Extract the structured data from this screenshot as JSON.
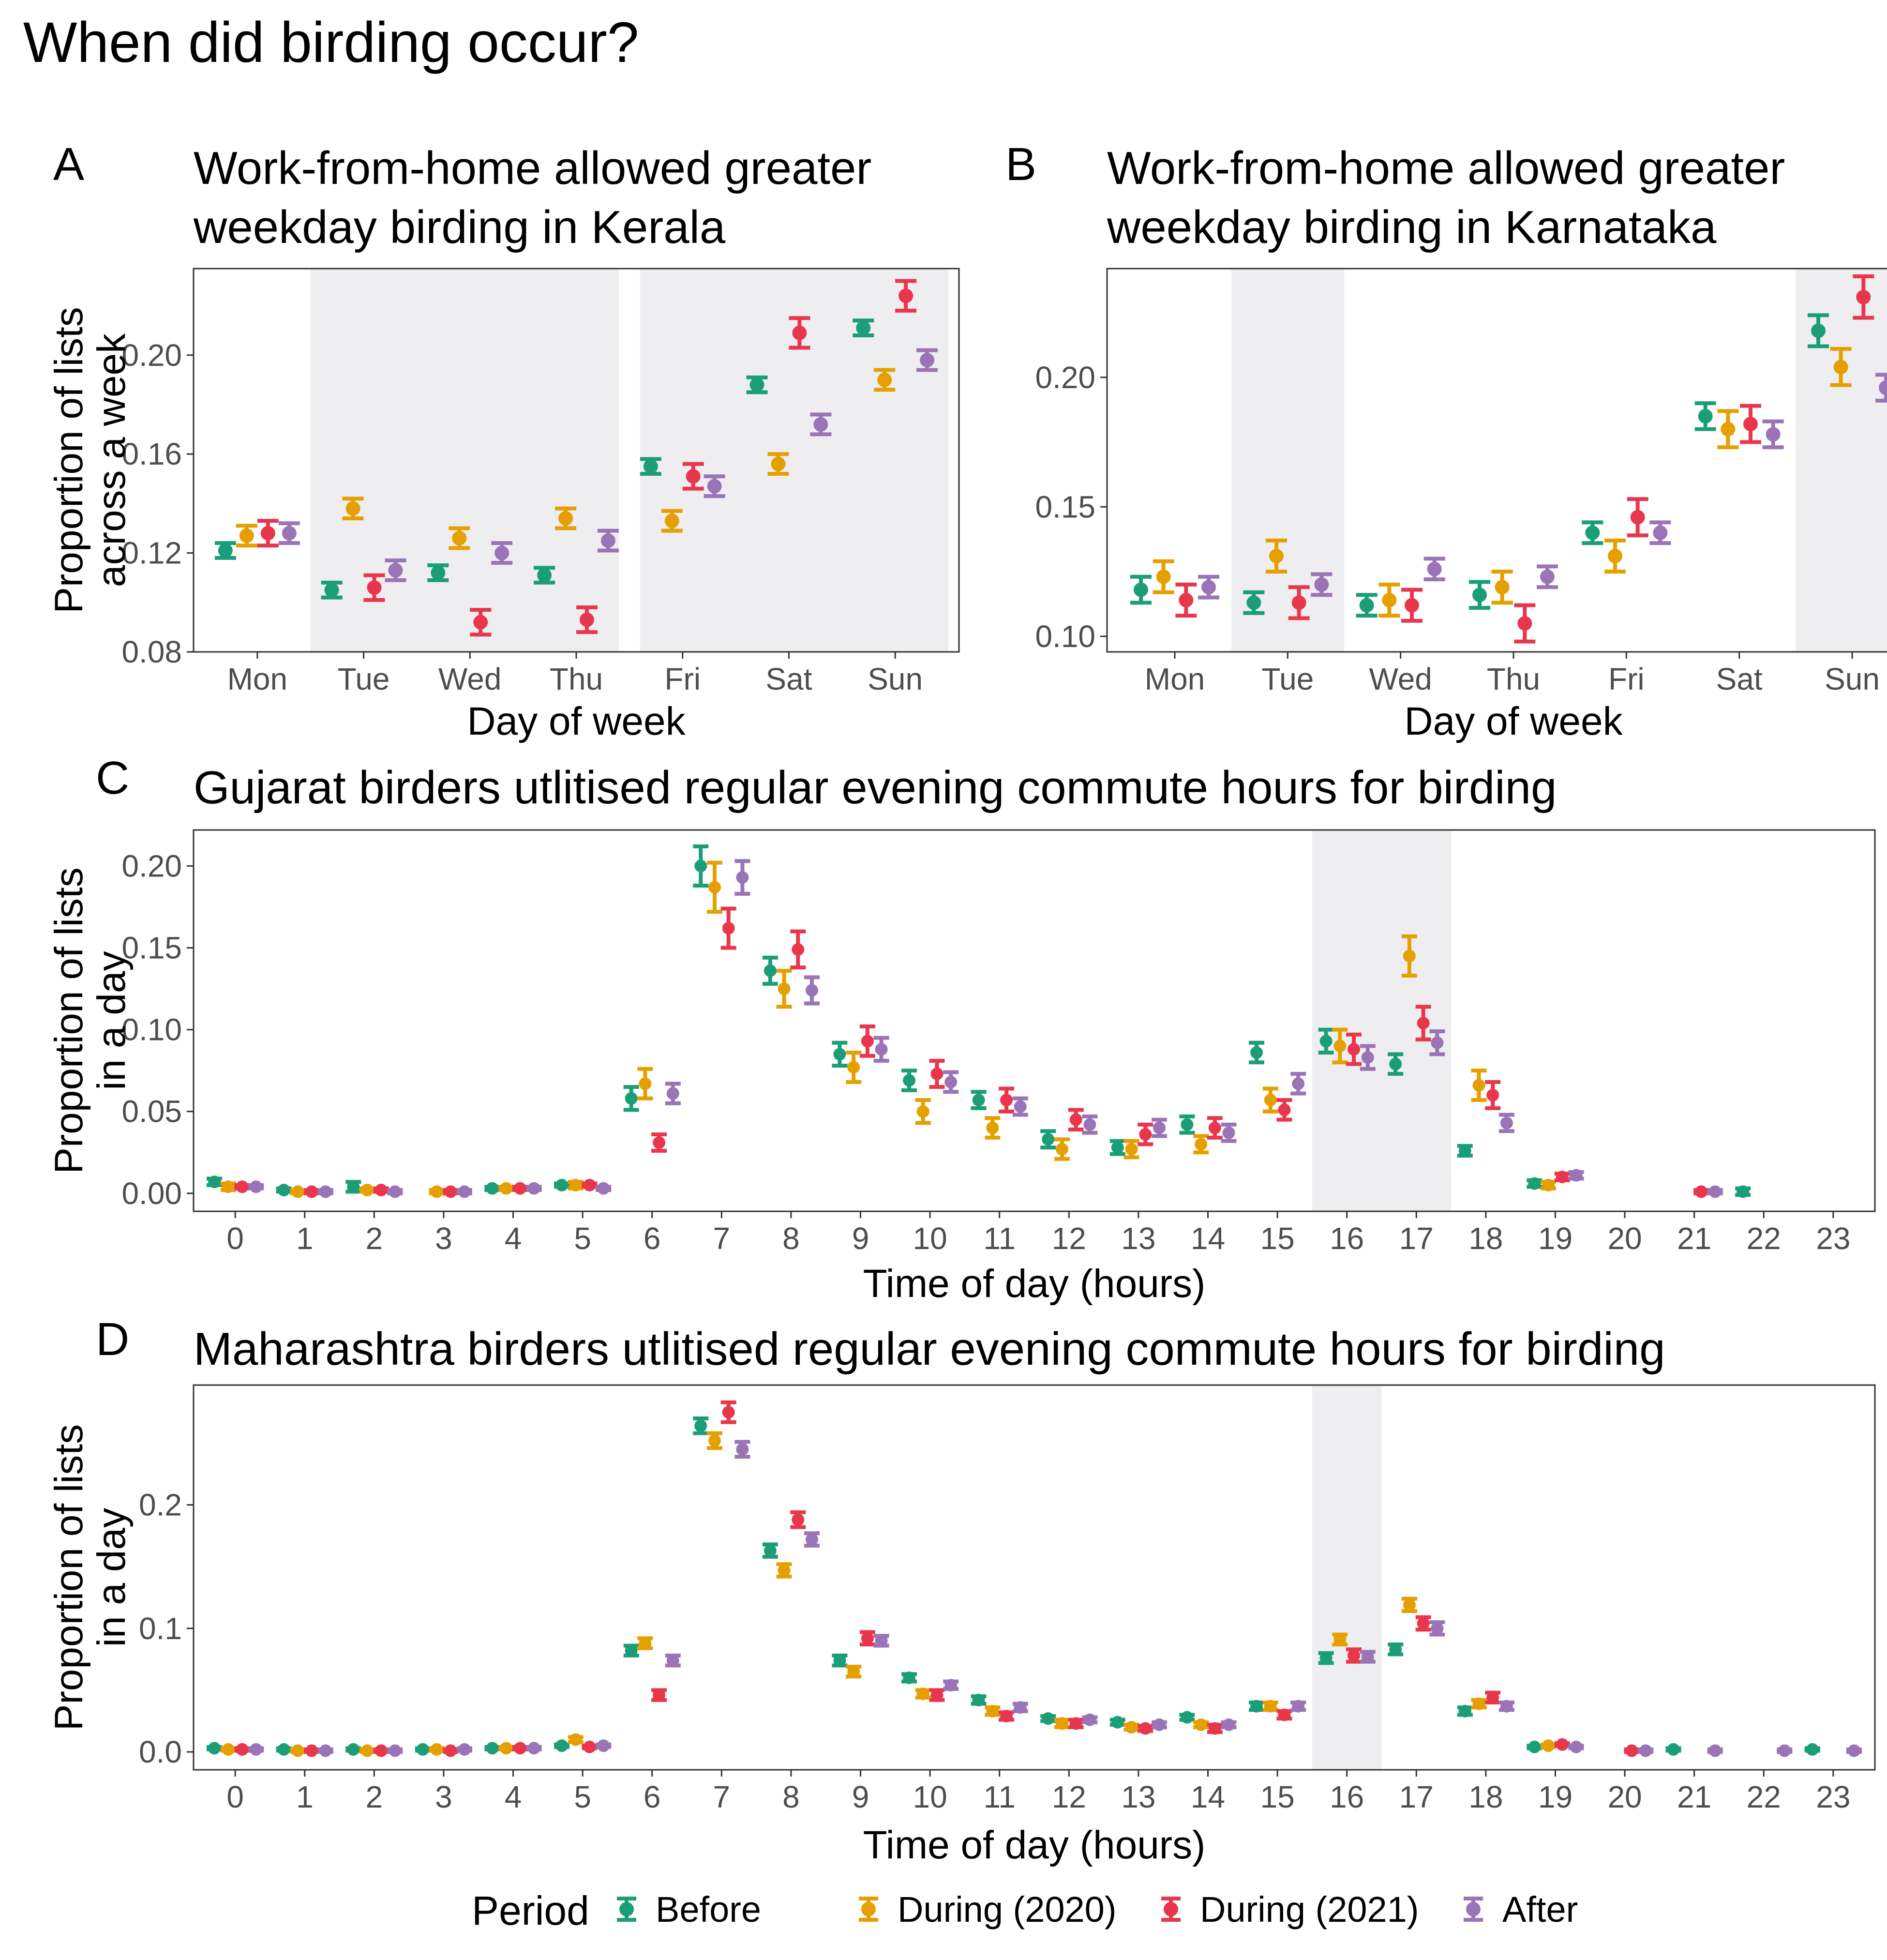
{
  "main_title": "When did birding occur?",
  "legend": {
    "title": "Period",
    "items": [
      {
        "name": "Before",
        "color": "#1b9e77"
      },
      {
        "name": "During (2020)",
        "color": "#e69f00"
      },
      {
        "name": "During (2021)",
        "color": "#e8374d"
      },
      {
        "name": "After",
        "color": "#9a74b6"
      }
    ]
  },
  "chart_data": [
    {
      "type": "scatter",
      "panel": "A",
      "title": [
        "Work-from-home allowed greater",
        "weekday birding in Kerala"
      ],
      "xlabel": "Day of week",
      "ylabel": [
        "Proportion of lists",
        "across a week"
      ],
      "categories": [
        "Mon",
        "Tue",
        "Wed",
        "Thu",
        "Fri",
        "Sat",
        "Sun"
      ],
      "ylim": [
        0.08,
        0.235
      ],
      "yticks": [
        0.08,
        0.12,
        0.16,
        0.2
      ],
      "tick_labels": [
        "0.08",
        "0.12",
        "0.16",
        "0.20"
      ],
      "shaded": [
        [
          1.5,
          4.4
        ],
        [
          4.6,
          7.5
        ]
      ],
      "series": [
        {
          "name": "Before",
          "values": [
            0.121,
            0.105,
            0.112,
            0.111,
            0.155,
            0.188,
            0.211
          ],
          "err": [
            0.003,
            0.003,
            0.003,
            0.003,
            0.003,
            0.003,
            0.003
          ]
        },
        {
          "name": "During (2020)",
          "values": [
            0.127,
            0.138,
            0.126,
            0.134,
            0.133,
            0.156,
            0.19
          ],
          "err": [
            0.004,
            0.004,
            0.004,
            0.004,
            0.004,
            0.004,
            0.004
          ]
        },
        {
          "name": "During (2021)",
          "values": [
            0.128,
            0.106,
            0.092,
            0.093,
            0.151,
            0.209,
            0.224
          ],
          "err": [
            0.005,
            0.005,
            0.005,
            0.005,
            0.005,
            0.006,
            0.006
          ]
        },
        {
          "name": "After",
          "values": [
            0.128,
            0.113,
            0.12,
            0.125,
            0.147,
            0.172,
            0.198
          ],
          "err": [
            0.004,
            0.004,
            0.004,
            0.004,
            0.004,
            0.004,
            0.004
          ]
        }
      ]
    },
    {
      "type": "scatter",
      "panel": "B",
      "title": [
        "Work-from-home allowed greater",
        "weekday birding in Karnataka"
      ],
      "xlabel": "Day of week",
      "ylabel": [],
      "categories": [
        "Mon",
        "Tue",
        "Wed",
        "Thu",
        "Fri",
        "Sat",
        "Sun"
      ],
      "ylim": [
        0.094,
        0.242
      ],
      "yticks": [
        0.1,
        0.15,
        0.2
      ],
      "tick_labels": [
        "0.10",
        "0.15",
        "0.20"
      ],
      "shaded": [
        [
          1.5,
          2.5
        ],
        [
          6.5,
          7.5
        ]
      ],
      "series": [
        {
          "name": "Before",
          "values": [
            0.118,
            0.113,
            0.112,
            0.116,
            0.14,
            0.185,
            0.218
          ],
          "err": [
            0.005,
            0.004,
            0.004,
            0.005,
            0.004,
            0.005,
            0.006
          ]
        },
        {
          "name": "During (2020)",
          "values": [
            0.123,
            0.131,
            0.114,
            0.119,
            0.131,
            0.18,
            0.204
          ],
          "err": [
            0.006,
            0.006,
            0.006,
            0.006,
            0.006,
            0.007,
            0.007
          ]
        },
        {
          "name": "During (2021)",
          "values": [
            0.114,
            0.113,
            0.112,
            0.105,
            0.146,
            0.182,
            0.231
          ],
          "err": [
            0.006,
            0.006,
            0.006,
            0.007,
            0.007,
            0.007,
            0.008
          ]
        },
        {
          "name": "After",
          "values": [
            0.119,
            0.12,
            0.126,
            0.123,
            0.14,
            0.178,
            0.196
          ],
          "err": [
            0.004,
            0.004,
            0.004,
            0.004,
            0.004,
            0.005,
            0.005
          ]
        }
      ]
    },
    {
      "type": "scatter",
      "panel": "C",
      "title": [
        "Gujarat birders utlitised regular evening commute hours for birding"
      ],
      "xlabel": "Time of day (hours)",
      "ylabel": [
        "Proportion of lists",
        "in a day"
      ],
      "categories": [
        "0",
        "1",
        "2",
        "3",
        "4",
        "5",
        "6",
        "7",
        "8",
        "9",
        "10",
        "11",
        "12",
        "13",
        "14",
        "15",
        "16",
        "17",
        "18",
        "19",
        "20",
        "21",
        "22",
        "23"
      ],
      "ylim": [
        -0.011,
        0.222
      ],
      "yticks": [
        0.0,
        0.05,
        0.1,
        0.15,
        0.2
      ],
      "tick_labels": [
        "0.00",
        "0.05",
        "0.10",
        "0.15",
        "0.20"
      ],
      "shaded": [
        [
          16.5,
          18.5
        ]
      ],
      "series": [
        {
          "name": "Before",
          "values": [
            0.007,
            0.002,
            0.004,
            null,
            0.003,
            0.005,
            0.058,
            0.2,
            0.136,
            0.085,
            0.069,
            0.057,
            0.033,
            0.028,
            0.042,
            0.086,
            0.093,
            0.079,
            0.026,
            0.006,
            null,
            null,
            0.001,
            null
          ],
          "err": [
            0.002,
            0.001,
            0.003,
            null,
            0.001,
            0.001,
            0.007,
            0.012,
            0.008,
            0.007,
            0.006,
            0.005,
            0.005,
            0.004,
            0.005,
            0.006,
            0.007,
            0.006,
            0.003,
            0.002,
            null,
            null,
            0.002,
            null
          ]
        },
        {
          "name": "During (2020)",
          "values": [
            0.004,
            0.001,
            0.002,
            0.001,
            0.003,
            0.005,
            0.067,
            0.187,
            0.125,
            0.077,
            0.05,
            0.04,
            0.027,
            0.027,
            0.03,
            0.057,
            0.09,
            0.145,
            0.066,
            0.005,
            null,
            null,
            null,
            null
          ],
          "err": [
            0.002,
            0.001,
            0.001,
            0.001,
            0.001,
            0.002,
            0.009,
            0.015,
            0.011,
            0.009,
            0.007,
            0.006,
            0.006,
            0.005,
            0.005,
            0.007,
            0.01,
            0.012,
            0.009,
            0.002,
            null,
            null,
            null,
            null
          ]
        },
        {
          "name": "During (2021)",
          "values": [
            0.004,
            0.001,
            0.002,
            0.001,
            0.003,
            0.005,
            0.031,
            0.162,
            0.149,
            0.093,
            0.073,
            0.057,
            0.045,
            0.036,
            0.04,
            0.051,
            0.088,
            0.104,
            0.06,
            0.01,
            null,
            0.001,
            null,
            null
          ],
          "err": [
            0.001,
            0.001,
            0.001,
            0.001,
            0.001,
            0.001,
            0.005,
            0.012,
            0.011,
            0.009,
            0.008,
            0.007,
            0.006,
            0.006,
            0.006,
            0.006,
            0.009,
            0.01,
            0.008,
            0.002,
            null,
            0.001,
            null,
            null
          ]
        },
        {
          "name": "After",
          "values": [
            0.004,
            0.001,
            0.001,
            0.001,
            0.003,
            0.003,
            0.061,
            0.193,
            0.124,
            0.088,
            0.068,
            0.053,
            0.042,
            0.04,
            0.037,
            0.067,
            0.083,
            0.092,
            0.043,
            0.011,
            null,
            0.001,
            null,
            null
          ],
          "err": [
            0.001,
            0.001,
            0.001,
            0.001,
            0.001,
            0.001,
            0.006,
            0.01,
            0.008,
            0.007,
            0.006,
            0.005,
            0.005,
            0.005,
            0.005,
            0.006,
            0.007,
            0.007,
            0.005,
            0.002,
            null,
            0.001,
            null,
            null
          ]
        }
      ]
    },
    {
      "type": "scatter",
      "panel": "D",
      "title": [
        "Maharashtra birders utlitised regular evening commute hours for birding"
      ],
      "xlabel": "Time of day (hours)",
      "ylabel": [
        "Proportion of lists",
        "in a day"
      ],
      "categories": [
        "0",
        "1",
        "2",
        "3",
        "4",
        "5",
        "6",
        "7",
        "8",
        "9",
        "10",
        "11",
        "12",
        "13",
        "14",
        "15",
        "16",
        "17",
        "18",
        "19",
        "20",
        "21",
        "22",
        "23"
      ],
      "ylim": [
        -0.0145,
        0.297
      ],
      "yticks": [
        0.0,
        0.1,
        0.2
      ],
      "tick_labels": [
        "0.0",
        "0.1",
        "0.2"
      ],
      "shaded": [
        [
          16.5,
          17.5
        ]
      ],
      "series": [
        {
          "name": "Before",
          "values": [
            0.003,
            0.002,
            0.002,
            0.002,
            0.003,
            0.005,
            0.082,
            0.264,
            0.163,
            0.074,
            0.06,
            0.042,
            0.027,
            0.024,
            0.028,
            0.037,
            0.076,
            0.083,
            0.033,
            0.004,
            null,
            0.002,
            null,
            0.002
          ],
          "err": [
            0.001,
            0.001,
            0.001,
            0.001,
            0.001,
            0.001,
            0.004,
            0.006,
            0.005,
            0.004,
            0.003,
            0.003,
            0.002,
            0.002,
            0.002,
            0.003,
            0.004,
            0.004,
            0.003,
            0.001,
            null,
            0.001,
            null,
            0.001
          ]
        },
        {
          "name": "During (2020)",
          "values": [
            0.002,
            0.001,
            0.001,
            0.002,
            0.003,
            0.01,
            0.088,
            0.252,
            0.147,
            0.065,
            0.047,
            0.033,
            0.023,
            0.02,
            0.022,
            0.037,
            0.091,
            0.119,
            0.039,
            0.005,
            null,
            null,
            null,
            null
          ],
          "err": [
            0.001,
            0.001,
            0.001,
            0.001,
            0.001,
            0.002,
            0.004,
            0.006,
            0.005,
            0.004,
            0.003,
            0.003,
            0.003,
            0.002,
            0.002,
            0.003,
            0.004,
            0.005,
            0.003,
            0.001,
            null,
            null,
            null,
            null
          ]
        },
        {
          "name": "During (2021)",
          "values": [
            0.002,
            0.001,
            0.001,
            0.001,
            0.003,
            0.004,
            0.046,
            0.275,
            0.188,
            0.092,
            0.046,
            0.029,
            0.023,
            0.019,
            0.019,
            0.03,
            0.078,
            0.104,
            0.044,
            0.006,
            0.001,
            null,
            null,
            null
          ],
          "err": [
            0.001,
            0.001,
            0.001,
            0.001,
            0.001,
            0.001,
            0.004,
            0.008,
            0.006,
            0.005,
            0.004,
            0.003,
            0.003,
            0.002,
            0.003,
            0.003,
            0.005,
            0.005,
            0.004,
            0.001,
            0.001,
            null,
            null,
            null
          ]
        },
        {
          "name": "After",
          "values": [
            0.002,
            0.001,
            0.001,
            0.002,
            0.003,
            0.005,
            0.074,
            0.245,
            0.172,
            0.09,
            0.054,
            0.036,
            0.026,
            0.022,
            0.022,
            0.037,
            0.077,
            0.1,
            0.037,
            0.004,
            0.001,
            0.001,
            0.001,
            0.001
          ],
          "err": [
            0.001,
            0.001,
            0.001,
            0.001,
            0.001,
            0.001,
            0.004,
            0.006,
            0.005,
            0.004,
            0.003,
            0.003,
            0.002,
            0.002,
            0.002,
            0.003,
            0.004,
            0.005,
            0.003,
            0.001,
            0.001,
            0.001,
            0.001,
            0.001
          ]
        }
      ]
    }
  ]
}
